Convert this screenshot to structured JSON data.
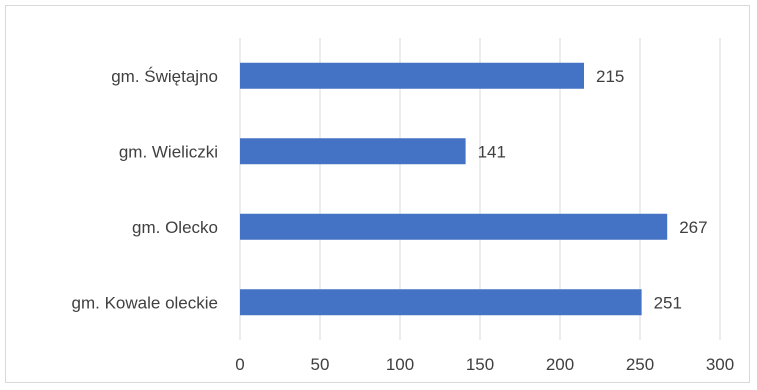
{
  "chart_data": {
    "type": "bar",
    "orientation": "horizontal",
    "categories": [
      "gm. Świętajno",
      "gm. Wieliczki",
      "gm. Olecko",
      "gm. Kowale oleckie"
    ],
    "values": [
      215,
      141,
      267,
      251
    ],
    "xlim": [
      0,
      300
    ],
    "x_ticks": [
      0,
      50,
      100,
      150,
      200,
      250,
      300
    ],
    "grid": "vertical",
    "data_labels": true,
    "title": "",
    "xlabel": "",
    "ylabel": "",
    "colors": {
      "bar": "#4472C4",
      "grid": "#d9d9d9",
      "text": "#404040",
      "frame": "#d9d9d9"
    }
  }
}
